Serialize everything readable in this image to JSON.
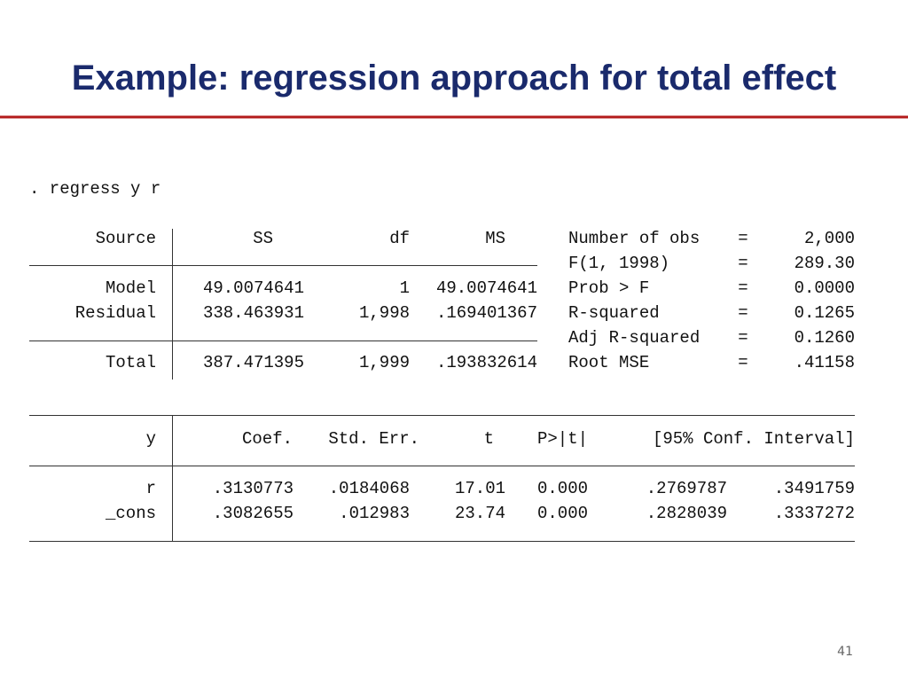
{
  "title": "Example: regression approach for total effect",
  "command": ". regress y r",
  "anova": {
    "headers": [
      "Source",
      "SS",
      "df",
      "MS"
    ],
    "rows": [
      [
        "Model",
        "49.0074641",
        "1",
        "49.0074641"
      ],
      [
        "Residual",
        "338.463931",
        "1,998",
        ".169401367"
      ]
    ],
    "total": [
      "Total",
      "387.471395",
      "1,999",
      ".193832614"
    ]
  },
  "stats": [
    [
      "Number of obs",
      "=",
      "2,000"
    ],
    [
      "F(1, 1998)",
      "=",
      "289.30"
    ],
    [
      "Prob > F",
      "=",
      "0.0000"
    ],
    [
      "R-squared",
      "=",
      "0.1265"
    ],
    [
      "Adj R-squared",
      "=",
      "0.1260"
    ],
    [
      "Root MSE",
      "=",
      ".41158"
    ]
  ],
  "coef": {
    "headers": [
      "y",
      "Coef.",
      "Std. Err.",
      "t",
      "P>|t|",
      "[95% Conf. Interval]"
    ],
    "rows": [
      [
        "r",
        ".3130773",
        ".0184068",
        "17.01",
        "0.000",
        ".2769787",
        ".3491759"
      ],
      [
        "_cons",
        ".3082655",
        ".012983",
        "23.74",
        "0.000",
        ".2828039",
        ".3337272"
      ]
    ]
  },
  "page_number": "41"
}
